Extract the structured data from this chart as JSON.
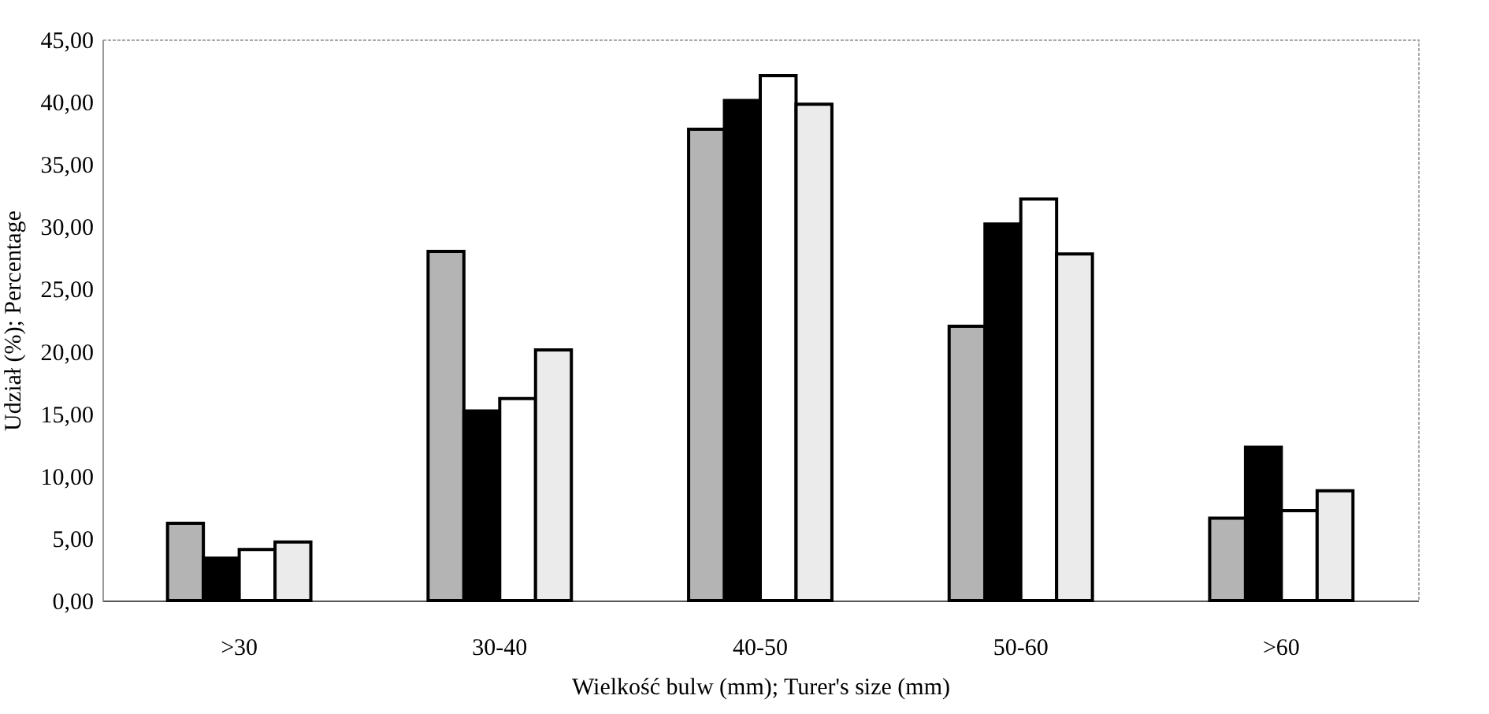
{
  "chart_data": {
    "type": "bar",
    "xlabel": "Wielkość bulw (mm); Turer's size (mm)",
    "ylabel": "Udział (%); Percentage",
    "categories": [
      ">30",
      "30-40",
      "40-50",
      "50-60",
      ">60"
    ],
    "series": [
      {
        "color": "#b4b4b4",
        "values": [
          6.2,
          28.0,
          37.8,
          22.0,
          6.6
        ]
      },
      {
        "color": "#000000",
        "values": [
          3.4,
          15.2,
          40.1,
          30.2,
          12.3
        ]
      },
      {
        "color": "#ffffff",
        "values": [
          4.1,
          16.2,
          42.1,
          32.2,
          7.2
        ]
      },
      {
        "color": "#ebebeb",
        "values": [
          4.7,
          20.1,
          39.8,
          27.8,
          8.8
        ]
      }
    ],
    "ylim": [
      0,
      45
    ],
    "yticks": [
      {
        "value": 0,
        "label": "0,00"
      },
      {
        "value": 5,
        "label": "5,00"
      },
      {
        "value": 10,
        "label": "10,00"
      },
      {
        "value": 15,
        "label": "15,00"
      },
      {
        "value": 20,
        "label": "20,00"
      },
      {
        "value": 25,
        "label": "25,00"
      },
      {
        "value": 30,
        "label": "30,00"
      },
      {
        "value": 35,
        "label": "35,00"
      },
      {
        "value": 40,
        "label": "40,00"
      },
      {
        "value": 45,
        "label": "45,00"
      }
    ],
    "grid": false,
    "legend": false
  }
}
